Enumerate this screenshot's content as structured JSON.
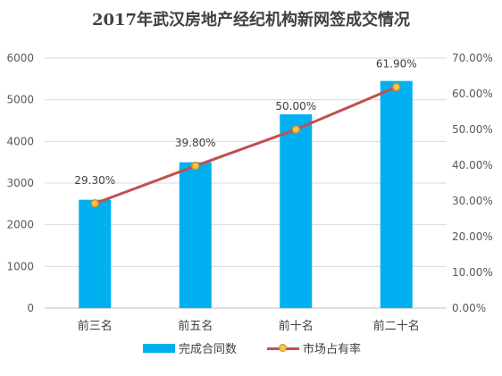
{
  "chart_data": {
    "type": "bar",
    "title": "2017年武汉房地产经纪机构新网签成交情况",
    "categories": [
      "前三名",
      "前五名",
      "前十名",
      "前二十名"
    ],
    "series": [
      {
        "name": "完成合同数",
        "type": "bar",
        "axis": "left",
        "values": [
          2600,
          3500,
          4650,
          5450
        ],
        "color": "#00b0f0"
      },
      {
        "name": "市场占有率",
        "type": "line",
        "axis": "right",
        "values": [
          29.3,
          39.8,
          50.0,
          61.9
        ],
        "labels": [
          "29.30%",
          "39.80%",
          "50.00%",
          "61.90%"
        ],
        "color": "#c0504d",
        "marker_color": "#f7c648"
      }
    ],
    "y_left": {
      "min": 0,
      "max": 6000,
      "ticks": [
        "0",
        "1000",
        "2000",
        "3000",
        "4000",
        "5000",
        "6000"
      ]
    },
    "y_right": {
      "min": 0,
      "max": 70,
      "ticks": [
        "0.00%",
        "10.00%",
        "20.00%",
        "30.00%",
        "40.00%",
        "50.00%",
        "60.00%",
        "70.00%"
      ]
    },
    "grid": true,
    "legend_position": "bottom"
  }
}
